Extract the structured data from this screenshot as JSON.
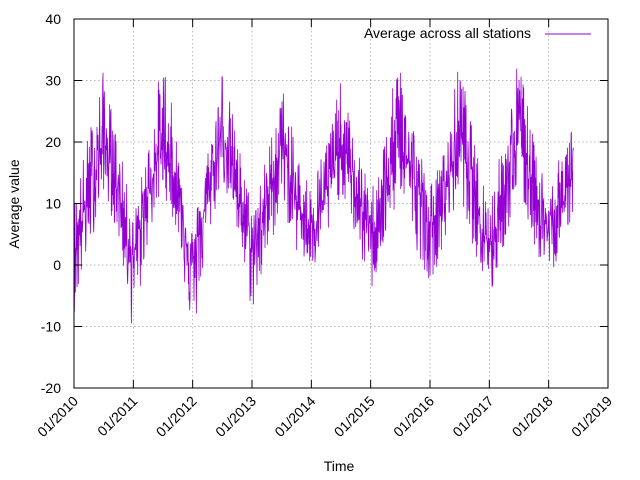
{
  "chart_data": {
    "type": "line",
    "title": "",
    "xlabel": "Time",
    "ylabel": "Average value",
    "ylim": [
      -20,
      40
    ],
    "xlim": [
      "2010-01-01",
      "2019-01-01"
    ],
    "grid": true,
    "legend_position": "top-right",
    "y_ticks": [
      "-20",
      "-10",
      "0",
      "10",
      "20",
      "30",
      "40"
    ],
    "x_ticks": [
      "01/2010",
      "01/2011",
      "01/2012",
      "01/2013",
      "01/2014",
      "01/2015",
      "01/2016",
      "01/2017",
      "01/2018",
      "01/2019"
    ],
    "series": [
      {
        "name": "Average across all stations",
        "color": "#9400d3",
        "x": [
          "2010-01",
          "2010-04",
          "2010-07",
          "2010-10",
          "2011-01",
          "2011-04",
          "2011-07",
          "2011-10",
          "2012-01",
          "2012-04",
          "2012-07",
          "2012-10",
          "2013-01",
          "2013-04",
          "2013-07",
          "2013-10",
          "2014-01",
          "2014-04",
          "2014-07",
          "2014-10",
          "2015-01",
          "2015-04",
          "2015-07",
          "2015-10",
          "2016-01",
          "2016-04",
          "2016-07",
          "2016-10",
          "2017-01",
          "2017-04",
          "2017-07",
          "2017-10",
          "2018-01",
          "2018-04",
          "2018-06"
        ],
        "low": [
          -8,
          2,
          12,
          4,
          -12,
          4,
          12,
          5,
          -13,
          3,
          14,
          4,
          -8,
          0,
          10,
          2,
          -2,
          3,
          12,
          4,
          -5,
          3,
          12,
          3,
          -3,
          3,
          12,
          2,
          -7,
          3,
          12,
          3,
          -3,
          4,
          8
        ],
        "mid": [
          2,
          12,
          20,
          12,
          1,
          12,
          20,
          12,
          0,
          11,
          22,
          13,
          2,
          10,
          20,
          10,
          6,
          12,
          20,
          12,
          5,
          12,
          21,
          13,
          6,
          11,
          22,
          12,
          3,
          11,
          21,
          13,
          5,
          10,
          18
        ],
        "high": [
          11,
          22,
          32,
          20,
          8,
          20,
          35,
          20,
          6,
          19,
          33,
          21,
          10,
          18,
          30,
          19,
          13,
          21,
          30,
          20,
          12,
          22,
          36,
          22,
          13,
          19,
          34,
          20,
          11,
          21,
          35,
          20,
          13,
          19,
          26
        ]
      }
    ]
  }
}
